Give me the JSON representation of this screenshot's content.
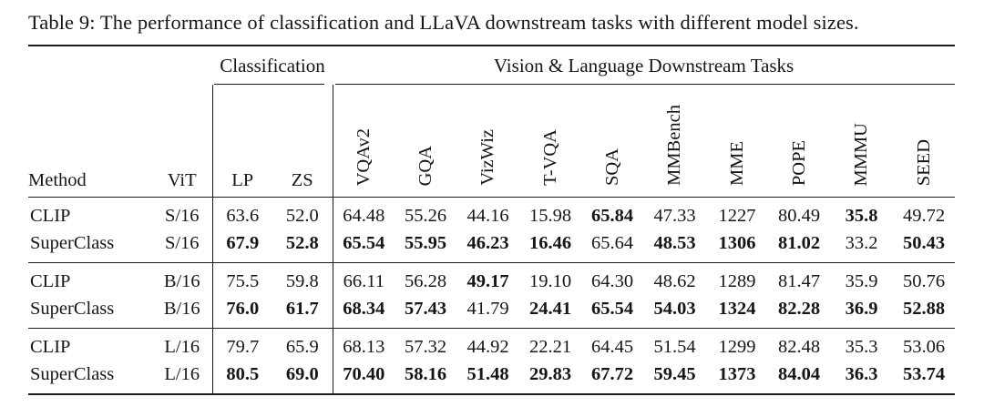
{
  "caption": "Table 9: The performance of classification and LLaVA downstream tasks with different model sizes.",
  "header": {
    "stub_columns": [
      "Method",
      "ViT"
    ],
    "group_headers": [
      {
        "label": "Classification",
        "columns": [
          "LP",
          "ZS"
        ]
      },
      {
        "label": "Vision & Language Downstream Tasks",
        "columns": [
          "VQAv2",
          "GQA",
          "VizWiz",
          "T-VQA",
          "SQA",
          "MMBench",
          "MME",
          "POPE",
          "MMMU",
          "SEED"
        ]
      }
    ]
  },
  "groups": [
    {
      "rows": [
        {
          "method": "CLIP",
          "vit": "S/16",
          "values": [
            "63.6",
            "52.0",
            "64.48",
            "55.26",
            "44.16",
            "15.98",
            "65.84",
            "47.33",
            "1227",
            "80.49",
            "35.8",
            "49.72"
          ],
          "bold": [
            false,
            false,
            false,
            false,
            false,
            false,
            true,
            false,
            false,
            false,
            true,
            false
          ]
        },
        {
          "method": "SuperClass",
          "vit": "S/16",
          "values": [
            "67.9",
            "52.8",
            "65.54",
            "55.95",
            "46.23",
            "16.46",
            "65.64",
            "48.53",
            "1306",
            "81.02",
            "33.2",
            "50.43"
          ],
          "bold": [
            true,
            true,
            true,
            true,
            true,
            true,
            false,
            true,
            true,
            true,
            false,
            true
          ]
        }
      ]
    },
    {
      "rows": [
        {
          "method": "CLIP",
          "vit": "B/16",
          "values": [
            "75.5",
            "59.8",
            "66.11",
            "56.28",
            "49.17",
            "19.10",
            "64.30",
            "48.62",
            "1289",
            "81.47",
            "35.9",
            "50.76"
          ],
          "bold": [
            false,
            false,
            false,
            false,
            true,
            false,
            false,
            false,
            false,
            false,
            false,
            false
          ]
        },
        {
          "method": "SuperClass",
          "vit": "B/16",
          "values": [
            "76.0",
            "61.7",
            "68.34",
            "57.43",
            "41.79",
            "24.41",
            "65.54",
            "54.03",
            "1324",
            "82.28",
            "36.9",
            "52.88"
          ],
          "bold": [
            true,
            true,
            true,
            true,
            false,
            true,
            true,
            true,
            true,
            true,
            true,
            true
          ]
        }
      ]
    },
    {
      "rows": [
        {
          "method": "CLIP",
          "vit": "L/16",
          "values": [
            "79.7",
            "65.9",
            "68.13",
            "57.32",
            "44.92",
            "22.21",
            "64.45",
            "51.54",
            "1299",
            "82.48",
            "35.3",
            "53.06"
          ],
          "bold": [
            false,
            false,
            false,
            false,
            false,
            false,
            false,
            false,
            false,
            false,
            false,
            false
          ]
        },
        {
          "method": "SuperClass",
          "vit": "L/16",
          "values": [
            "80.5",
            "69.0",
            "70.40",
            "58.16",
            "51.48",
            "29.83",
            "67.72",
            "59.45",
            "1373",
            "84.04",
            "36.3",
            "53.74"
          ],
          "bold": [
            true,
            true,
            true,
            true,
            true,
            true,
            true,
            true,
            true,
            true,
            true,
            true
          ]
        }
      ]
    }
  ],
  "colors": {
    "text": "#161616",
    "rule": "#1b1b1b",
    "background": "#ffffff"
  }
}
